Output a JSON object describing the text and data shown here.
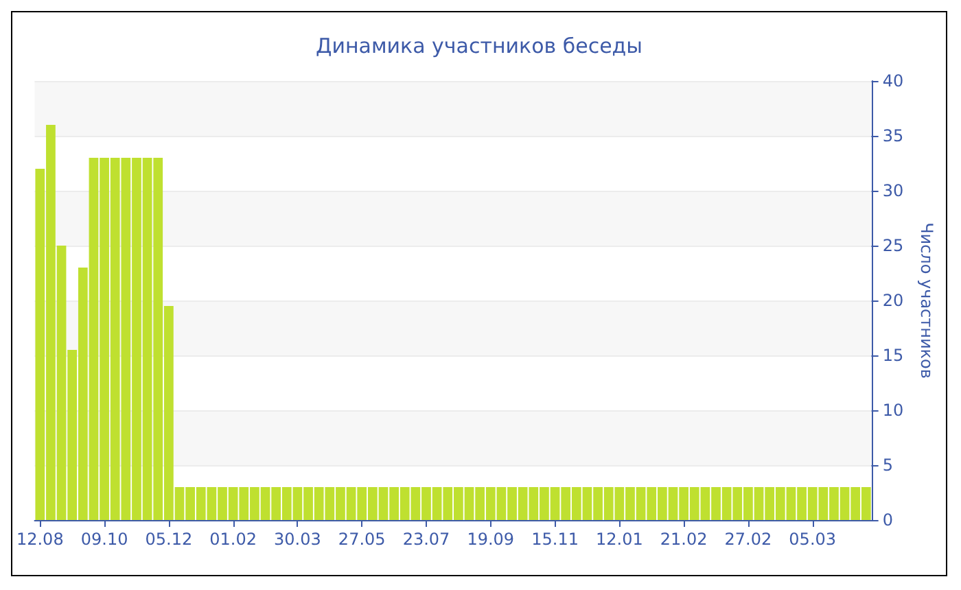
{
  "chart_data": {
    "type": "bar",
    "title": "Динамика участников беседы",
    "ylabel": "Число участников",
    "categories": [
      "12.08",
      null,
      null,
      null,
      null,
      null,
      "09.10",
      null,
      null,
      null,
      null,
      null,
      "05.12",
      null,
      null,
      null,
      null,
      null,
      "01.02",
      null,
      null,
      null,
      null,
      null,
      "30.03",
      null,
      null,
      null,
      null,
      null,
      "27.05",
      null,
      null,
      null,
      null,
      null,
      "23.07",
      null,
      null,
      null,
      null,
      null,
      "19.09",
      null,
      null,
      null,
      null,
      null,
      "15.11",
      null,
      null,
      null,
      null,
      null,
      "12.01",
      null,
      null,
      null,
      null,
      null,
      "21.02",
      null,
      null,
      null,
      null,
      null,
      "27.02",
      null,
      null,
      null,
      null,
      null,
      "05.03",
      null,
      null,
      null,
      null,
      null
    ],
    "values": [
      32,
      36,
      25,
      15.5,
      23,
      33,
      33,
      33,
      33,
      33,
      33,
      33,
      19.5,
      3,
      3,
      3,
      3,
      3,
      3,
      3,
      3,
      3,
      3,
      3,
      3,
      3,
      3,
      3,
      3,
      3,
      3,
      3,
      3,
      3,
      3,
      3,
      3,
      3,
      3,
      3,
      3,
      3,
      3,
      3,
      3,
      3,
      3,
      3,
      3,
      3,
      3,
      3,
      3,
      3,
      3,
      3,
      3,
      3,
      3,
      3,
      3,
      3,
      3,
      3,
      3,
      3,
      3,
      3,
      3,
      3,
      3,
      3,
      3,
      3,
      3,
      3,
      3,
      3
    ],
    "color": "#bfe030",
    "ylim": [
      0,
      40
    ],
    "yticks": [
      0,
      5,
      10,
      15,
      20,
      25,
      30,
      35,
      40
    ],
    "grid": "y"
  }
}
